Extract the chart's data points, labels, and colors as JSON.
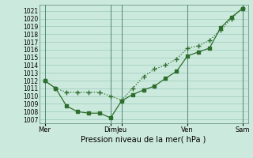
{
  "xlabel": "Pression niveau de la mer( hPa )",
  "ylim": [
    1006.5,
    1021.8
  ],
  "yticks": [
    1007,
    1008,
    1009,
    1010,
    1011,
    1012,
    1013,
    1014,
    1015,
    1016,
    1017,
    1018,
    1019,
    1020,
    1021
  ],
  "xtick_labels": [
    "Mer",
    "Dim",
    "Jeu",
    "Ven",
    "Sam"
  ],
  "xtick_positions": [
    0,
    6,
    7,
    13,
    18
  ],
  "vlines_x": [
    0,
    6,
    7,
    13,
    18
  ],
  "bg_color": "#cce9dd",
  "grid_color": "#99ccbb",
  "line_color": "#2d6e2d",
  "line1_x": [
    0,
    1,
    2,
    3,
    4,
    5,
    6,
    7,
    8,
    9,
    10,
    11,
    12,
    13,
    14,
    15,
    16,
    17,
    18
  ],
  "line1_y": [
    1012.0,
    1011.0,
    1008.7,
    1008.0,
    1007.8,
    1007.8,
    1007.2,
    1009.4,
    1010.2,
    1010.8,
    1011.3,
    1012.3,
    1013.2,
    1015.2,
    1015.7,
    1016.2,
    1018.8,
    1020.2,
    1021.3
  ],
  "line2_x": [
    0,
    1,
    2,
    3,
    4,
    5,
    6,
    7,
    8,
    9,
    10,
    11,
    12,
    13,
    14,
    15,
    16,
    17,
    18
  ],
  "line2_y": [
    1012.0,
    1011.0,
    1010.5,
    1010.5,
    1010.5,
    1010.5,
    1010.0,
    1009.5,
    1011.0,
    1012.5,
    1013.5,
    1014.0,
    1014.8,
    1016.2,
    1016.5,
    1017.2,
    1018.5,
    1020.0,
    1021.4
  ],
  "marker1": "s",
  "marker2": "P",
  "marker_size": 2.5
}
